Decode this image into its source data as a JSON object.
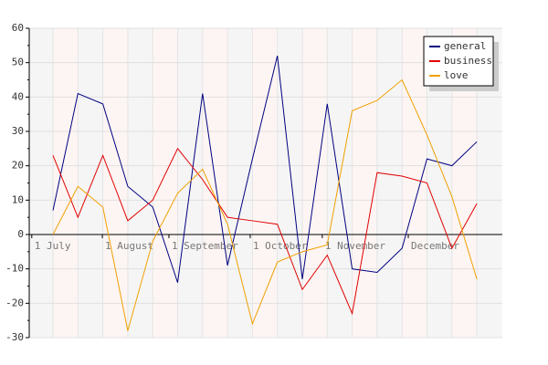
{
  "chart_data": {
    "type": "line",
    "categories": [
      null,
      null,
      null,
      null,
      null,
      null,
      null,
      null,
      null,
      null,
      null,
      null,
      null,
      null,
      null,
      null,
      null,
      null
    ],
    "series": [
      {
        "name": "general",
        "color": "#000080",
        "values": [
          7,
          41,
          38,
          14,
          8,
          -14,
          41,
          -9,
          22,
          52,
          -13,
          38,
          -10,
          -11,
          -4,
          22,
          20,
          27
        ]
      },
      {
        "name": "business",
        "color": "#e00000",
        "values": [
          23,
          5,
          23,
          4,
          10,
          25,
          16,
          5,
          4,
          3,
          -16,
          -6,
          -23,
          18,
          17,
          15,
          -4,
          9
        ]
      },
      {
        "name": "love",
        "color": "#f0a000",
        "values": [
          0,
          14,
          8,
          -28,
          -2,
          12,
          19,
          3,
          -26,
          -8,
          -5,
          -3,
          36,
          39,
          45,
          29,
          11,
          -13
        ]
      }
    ],
    "ylim": [
      -30,
      60
    ],
    "yticks": [
      -30,
      -20,
      -10,
      0,
      10,
      20,
      30,
      40,
      50,
      60
    ],
    "xticks": [
      {
        "value": -0.85,
        "label": "1 July"
      },
      {
        "value": 1.98,
        "label": "1 August"
      },
      {
        "value": 4.65,
        "label": "1 September"
      },
      {
        "value": 7.91,
        "label": "1 October"
      },
      {
        "value": 10.8,
        "label": "1 November"
      },
      {
        "value": 14.25,
        "label": "December"
      }
    ],
    "grid": true,
    "legend": "top-right"
  }
}
